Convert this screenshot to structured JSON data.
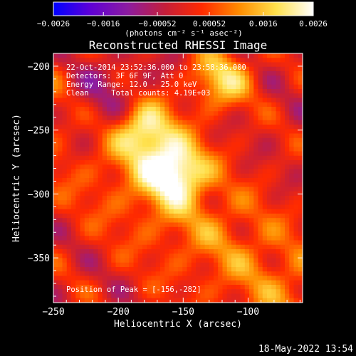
{
  "chart_data": {
    "type": "heatmap",
    "title": "Reconstructed RHESSI Image",
    "xlabel": "Heliocentric X (arcsec)",
    "ylabel": "Heliocentric Y (arcsec)",
    "xlim": [
      -250,
      -58
    ],
    "ylim": [
      -385,
      -190
    ],
    "x_ticks": [
      -250,
      -200,
      -150,
      -100
    ],
    "x_tick_labels": [
      "−250",
      "−200",
      "−150",
      "−100"
    ],
    "y_ticks": [
      -200,
      -250,
      -300,
      -350
    ],
    "y_tick_labels": [
      "−200",
      "−250",
      "−300",
      "−350"
    ],
    "colorbar": {
      "range": [
        -0.0026,
        0.0026
      ],
      "tick_values": [
        -0.0026,
        -0.0016,
        -0.00052,
        0.00052,
        0.0016,
        0.0026
      ],
      "tick_labels": [
        "−0.0026",
        "−0.0016",
        "−0.00052",
        "0.00052",
        "0.0016",
        "0.0026"
      ],
      "unit_label": "(photons cm⁻² s⁻¹ asec⁻²)",
      "colormap": [
        "#0000ff",
        "#5f00d6",
        "#8c1ca0",
        "#c41e3a",
        "#ff2a00",
        "#ff8c00",
        "#ffe14d",
        "#ffffff"
      ]
    },
    "annotations": [
      "22-Oct-2014 23:52:36.000 to 23:58:36.000",
      "Detectors: 3F 6F 9F, Att 0",
      "Energy Range: 12.0 - 25.0 keV",
      "Clean     Total counts: 4.19E+03"
    ],
    "peak_label": "Position of Peak = [-156,-282]",
    "peak": [
      -156,
      -282
    ],
    "sources": [
      {
        "x": -180,
        "y": -250,
        "peak": 0.0024
      },
      {
        "x": -156,
        "y": -282,
        "peak": 0.0026
      },
      {
        "x": -120,
        "y": -210,
        "peak": 0.0018
      }
    ]
  },
  "footer": {
    "timestamp": "18-May-2022 13:54"
  }
}
